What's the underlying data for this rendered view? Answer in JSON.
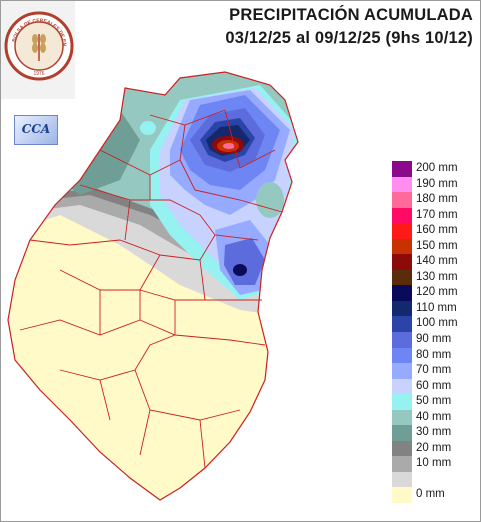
{
  "header": {
    "title_line1": "PRECIPITACIÓN ACUMULADA",
    "title_line2": "03/12/25 al 09/12/25 (9hs 10/12)"
  },
  "logo": {
    "ring_text": "BOLSA DE CEREALES DE ENTRE RIOS",
    "year": "1976"
  },
  "badge": {
    "text": "CCA"
  },
  "legend": {
    "items": [
      {
        "label": "200 mm",
        "color": "#8b0a8b"
      },
      {
        "label": "190 mm",
        "color": "#ff8cf0"
      },
      {
        "label": "180 mm",
        "color": "#ff6a9a"
      },
      {
        "label": "170 mm",
        "color": "#ff0a64"
      },
      {
        "label": "160 mm",
        "color": "#ff1a1a"
      },
      {
        "label": "150 mm",
        "color": "#c83200"
      },
      {
        "label": "140 mm",
        "color": "#8c0a0a"
      },
      {
        "label": "130 mm",
        "color": "#5a2d0a"
      },
      {
        "label": "120 mm",
        "color": "#0a0a5a"
      },
      {
        "label": "110 mm",
        "color": "#14286e"
      },
      {
        "label": "100 mm",
        "color": "#2a44a8"
      },
      {
        "label": "90 mm",
        "color": "#5c6cdc"
      },
      {
        "label": "80 mm",
        "color": "#6e86f4"
      },
      {
        "label": "70 mm",
        "color": "#96aaff"
      },
      {
        "label": "60 mm",
        "color": "#c8d2ff"
      },
      {
        "label": "50 mm",
        "color": "#96f2f0"
      },
      {
        "label": "40 mm",
        "color": "#96c8c2"
      },
      {
        "label": "30 mm",
        "color": "#6e9e96"
      },
      {
        "label": "20 mm",
        "color": "#828282"
      },
      {
        "label": "10 mm",
        "color": "#aaaaaa"
      },
      {
        "label": "",
        "color": "#d9d9d9"
      },
      {
        "label": "0 mm",
        "color": "#fffac8"
      }
    ]
  }
}
